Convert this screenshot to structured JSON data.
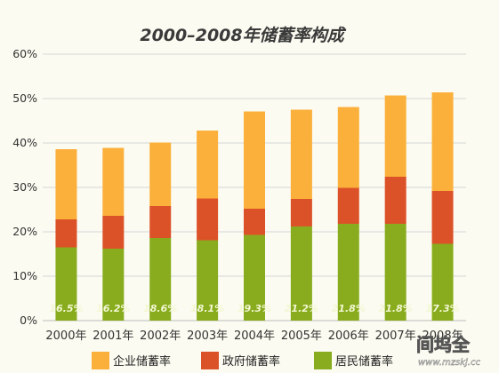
{
  "chart_data": {
    "type": "bar",
    "stacked": true,
    "title": "2000–2008年储蓄率构成",
    "categories": [
      "2000年",
      "2001年",
      "2002年",
      "2003年",
      "2004年",
      "2005年",
      "2006年",
      "2007年",
      "2008年"
    ],
    "series": [
      {
        "name": "居民储蓄率",
        "color": "#88ac1e",
        "values": [
          16.5,
          16.2,
          18.6,
          18.1,
          19.3,
          21.2,
          21.8,
          21.8,
          17.3
        ],
        "labels": [
          "16.5%",
          "16.2%",
          "18.6%",
          "18.1%",
          "19.3%",
          "21.2%",
          "21.8%",
          "21.8%",
          "17.3%"
        ]
      },
      {
        "name": "政府储蓄率",
        "color": "#dc5228",
        "values": [
          6.3,
          7.4,
          7.2,
          9.4,
          5.9,
          6.2,
          8.1,
          10.6,
          11.9
        ]
      },
      {
        "name": "企业储蓄率",
        "color": "#fbb03b",
        "values": [
          15.8,
          15.3,
          14.3,
          15.3,
          21.9,
          20.1,
          18.2,
          18.3,
          22.2
        ]
      }
    ],
    "ylim": [
      0,
      60
    ],
    "yticks": [
      0,
      10,
      20,
      30,
      40,
      50,
      60
    ],
    "ytick_labels": [
      "0%",
      "10%",
      "20%",
      "30%",
      "40%",
      "50%",
      "60%"
    ],
    "grid": true,
    "legend_position": "bottom",
    "legend_order": [
      "企业储蓄率",
      "政府储蓄率",
      "居民储蓄率"
    ]
  },
  "watermark": {
    "main": "间坞全",
    "sub": "www.mzskj.cc"
  }
}
